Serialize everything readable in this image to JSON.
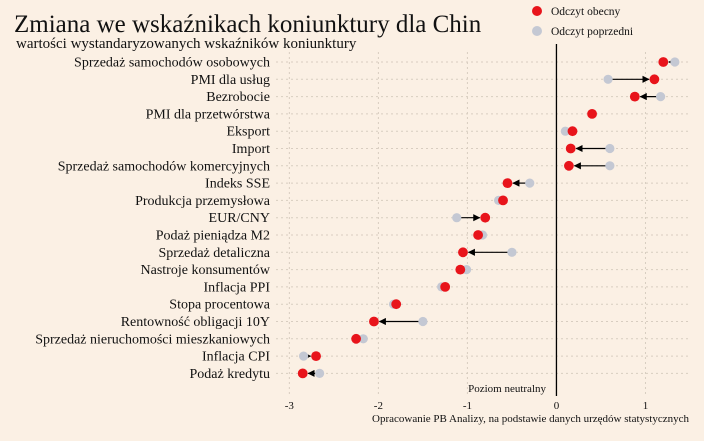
{
  "chart_data": {
    "type": "scatter",
    "title": "Zmiana we wskaźnikach koniunktury dla Chin",
    "subtitle": "wartości wystandaryzowanych wskaźników koniunktury",
    "legend": {
      "position": "top-right",
      "current_label": "Odczyt obecny",
      "previous_label": "Odczyt poprzedni"
    },
    "colors": {
      "current": "#e8141b",
      "previous": "#c4c8d3",
      "arrow": "#000000",
      "zero_line": "#000000",
      "grid": "#d8cdc0"
    },
    "x_ticks": [
      "-3",
      "-2",
      "-1",
      "0",
      "1"
    ],
    "x_tick_values": [
      -3,
      -2,
      -1,
      0,
      1
    ],
    "xlim": [
      -3.15,
      1.5
    ],
    "zero_label": "Poziom neutralny",
    "source": "Opracowanie PB Analizy, na podstawie danych urzędów statystycznych",
    "grid": true,
    "categories": [
      "Sprzedaż samochodów osobowych",
      "PMI dla usług",
      "Bezrobocie",
      "PMI dla przetwórstwa",
      "Eksport",
      "Import",
      "Sprzedaż samochodów komercyjnych",
      "Indeks SSE",
      "Produkcja przemysłowa",
      "EUR/CNY",
      "Podaż pieniądza M2",
      "Sprzedaż detaliczna",
      "Nastroje konsumentów",
      "Inflacja PPI",
      "Stopa procentowa",
      "Rentowność obligacji 10Y",
      "Sprzedaż nieruchomości mieszkaniowych",
      "Inflacja CPI",
      "Podaż kredytu"
    ],
    "series": [
      {
        "name": "Odczyt obecny",
        "values": [
          1.2,
          1.1,
          0.88,
          0.4,
          0.18,
          0.16,
          0.14,
          -0.55,
          -0.6,
          -0.8,
          -0.88,
          -1.05,
          -1.08,
          -1.25,
          -1.8,
          -2.05,
          -2.25,
          -2.7,
          -2.85
        ]
      },
      {
        "name": "Odczyt poprzedni",
        "values": [
          1.33,
          0.58,
          1.17,
          0.4,
          0.1,
          0.6,
          0.6,
          -0.3,
          -0.65,
          -1.12,
          -0.83,
          -0.5,
          -1.01,
          -1.29,
          -1.83,
          -1.5,
          -2.17,
          -2.84,
          -2.66
        ]
      }
    ],
    "arrows": [
      true,
      true,
      true,
      false,
      false,
      true,
      true,
      true,
      false,
      true,
      false,
      true,
      false,
      false,
      false,
      true,
      false,
      true,
      true
    ]
  }
}
